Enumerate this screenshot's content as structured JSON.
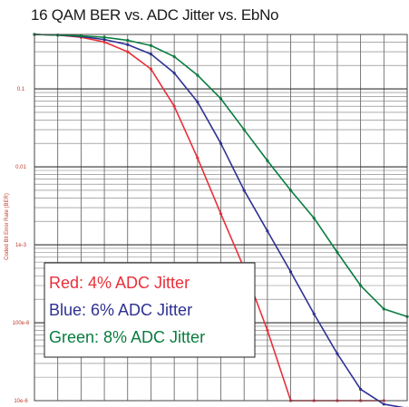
{
  "chart_data": {
    "type": "line",
    "title": "16 QAM BER vs. ADC Jitter vs. EbNo",
    "xlabel": "",
    "ylabel": "Coded Bit Error Rate (BER)",
    "y_scale": "log",
    "ylim": [
      1e-05,
      0.5
    ],
    "xlim": [
      0,
      16
    ],
    "grid": true,
    "legend_position": "bottom-left",
    "y_ticks": [
      {
        "value": 0.1,
        "label": "0.1"
      },
      {
        "value": 0.01,
        "label": "0.01"
      },
      {
        "value": 0.001,
        "label": "1e-3"
      },
      {
        "value": 0.0001,
        "label": "100e-6"
      },
      {
        "value": 1e-05,
        "label": "10e-6"
      }
    ],
    "x": [
      0,
      1,
      2,
      3,
      4,
      5,
      6,
      7,
      8,
      9,
      10,
      11,
      12,
      13,
      14,
      15,
      16
    ],
    "series": [
      {
        "name": "Red: 4% ADC Jitter",
        "color": "#e8303a",
        "x": [
          0,
          1,
          2,
          3,
          4,
          5,
          6,
          7,
          8,
          9,
          10,
          11,
          12,
          13,
          14,
          15
        ],
        "values": [
          0.5,
          0.49,
          0.46,
          0.4,
          0.3,
          0.18,
          0.06,
          0.013,
          0.0025,
          0.0005,
          8e-05,
          1e-05,
          1e-05,
          1e-05,
          1e-05,
          1e-05
        ]
      },
      {
        "name": "Blue: 6% ADC Jitter",
        "color": "#2e3192",
        "x": [
          0,
          1,
          2,
          3,
          4,
          5,
          6,
          7,
          8,
          9,
          10,
          11,
          12,
          13,
          14,
          15,
          16
        ],
        "values": [
          0.5,
          0.49,
          0.47,
          0.43,
          0.37,
          0.28,
          0.16,
          0.068,
          0.02,
          0.005,
          0.0015,
          0.00045,
          0.00013,
          4e-05,
          1.4e-05,
          9e-06,
          8e-06
        ]
      },
      {
        "name": "Green: 8% ADC Jitter",
        "color": "#0a7c3f",
        "x": [
          0,
          1,
          2,
          3,
          4,
          5,
          6,
          7,
          8,
          9,
          10,
          11,
          12,
          13,
          14,
          15,
          16
        ],
        "values": [
          0.5,
          0.49,
          0.48,
          0.46,
          0.42,
          0.36,
          0.26,
          0.15,
          0.075,
          0.03,
          0.012,
          0.005,
          0.0022,
          0.0008,
          0.0003,
          0.00015,
          0.00012
        ]
      }
    ]
  }
}
